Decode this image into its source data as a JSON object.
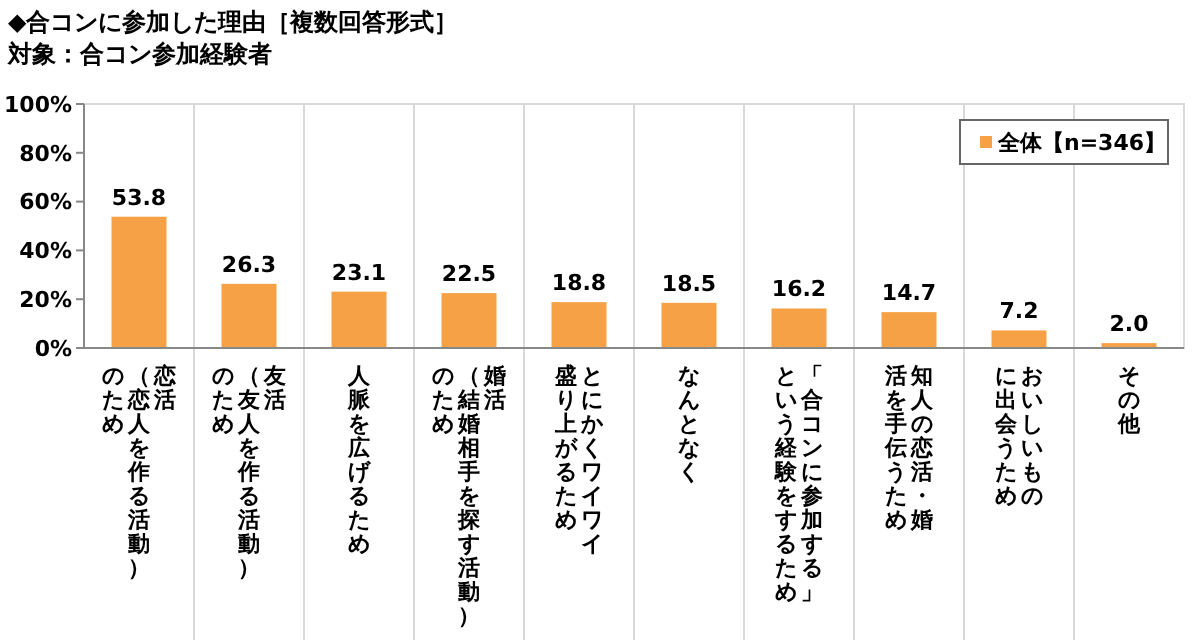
{
  "chart_data": {
    "type": "bar",
    "title": "◆合コンに参加した理由［複数回答形式］",
    "subtitle": "対象：合コン参加経験者",
    "categories": [
      "恋活（恋人を作る活動）のため",
      "友活（友人を作る活動）のため",
      "人脈を広げるため",
      "婚活（結婚相手を探す活動）のため",
      "とにかくワイワイ盛り上がるため",
      "なんとなく",
      "「合コンに参加する」という経験をするため",
      "知人の恋活・婚活を手伝うため",
      "おいしいものに出会うため",
      "その他"
    ],
    "series": [
      {
        "name": "全体【n=346】",
        "color": "#f7a146",
        "values": [
          53.8,
          26.3,
          23.1,
          22.5,
          18.8,
          18.5,
          16.2,
          14.7,
          7.2,
          2.0
        ],
        "value_labels": [
          "53.8",
          "26.3",
          "23.1",
          "22.5",
          "18.8",
          "18.5",
          "16.2",
          "14.7",
          "7.2",
          "2.0"
        ]
      }
    ],
    "ylim": [
      0,
      100
    ],
    "yticks": [
      {
        "value": 0,
        "label": "0%"
      },
      {
        "value": 20,
        "label": "20%"
      },
      {
        "value": 40,
        "label": "40%"
      },
      {
        "value": 60,
        "label": "60%"
      },
      {
        "value": 80,
        "label": "80%"
      },
      {
        "value": 100,
        "label": "100%"
      }
    ],
    "grid": "x",
    "legend": "top right"
  }
}
